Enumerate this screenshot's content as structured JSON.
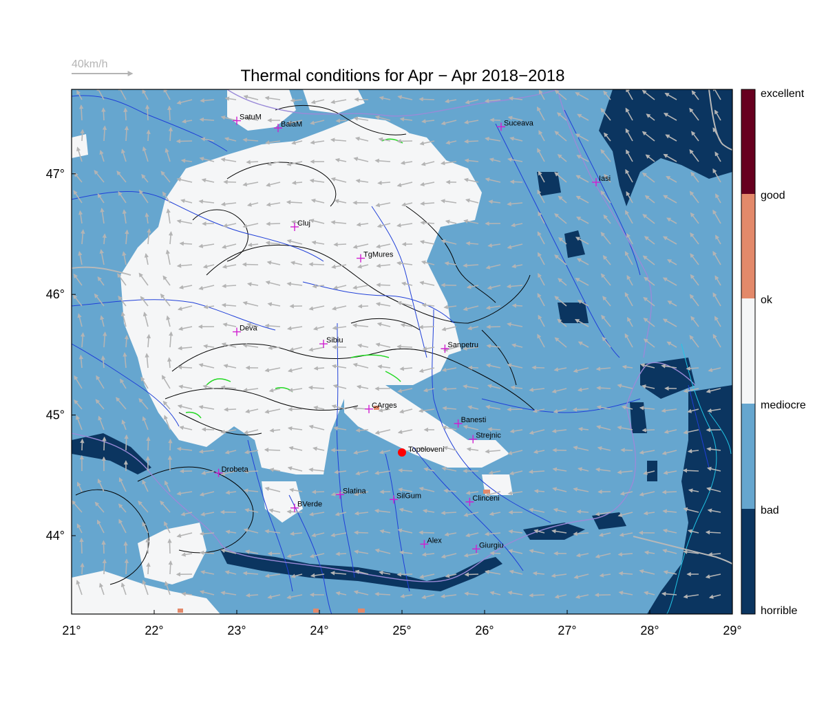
{
  "title": "Thermal conditions for Apr − Apr  2018−2018",
  "wind_scale": {
    "label": "40km/h"
  },
  "map": {
    "lon_range": [
      21,
      29
    ],
    "lat_range": [
      43.35,
      47.7
    ],
    "x_ticks": [
      "21°",
      "22°",
      "23°",
      "24°",
      "25°",
      "26°",
      "27°",
      "28°",
      "29°"
    ],
    "y_ticks": [
      "47°",
      "46°",
      "45°",
      "44°"
    ],
    "marked_location": {
      "name": "Topoloveni",
      "lon": 25.0,
      "lat": 44.69
    }
  },
  "colors": {
    "horrible": "#0b3560",
    "bad": "#66a6cf",
    "mediocre": "#f5f6f7",
    "ok": "#e3896a",
    "good": "#67001f",
    "wind_arrow": "#b4b4b4",
    "river": "#1f3fd8",
    "border": "#9a8ad8",
    "contour": "#000000",
    "city_marker": "#d01fd0",
    "location_marker": "#ff0000"
  },
  "legend": {
    "labels": [
      "excellent",
      "good",
      "ok",
      "mediocre",
      "bad",
      "horrible"
    ]
  },
  "cities": [
    {
      "name": "SatuM",
      "lon": 23.0,
      "lat": 47.44
    },
    {
      "name": "BaiaM",
      "lon": 23.5,
      "lat": 47.38
    },
    {
      "name": "Suceava",
      "lon": 26.2,
      "lat": 47.39
    },
    {
      "name": "Iasi",
      "lon": 27.35,
      "lat": 46.93
    },
    {
      "name": "Cluj",
      "lon": 23.7,
      "lat": 46.56
    },
    {
      "name": "TgMures",
      "lon": 24.5,
      "lat": 46.3
    },
    {
      "name": "Deva",
      "lon": 23.0,
      "lat": 45.69
    },
    {
      "name": "Sibiu",
      "lon": 24.05,
      "lat": 45.59
    },
    {
      "name": "Sanpetru",
      "lon": 25.52,
      "lat": 45.55
    },
    {
      "name": "CArges",
      "lon": 24.6,
      "lat": 45.05
    },
    {
      "name": "Banesti",
      "lon": 25.68,
      "lat": 44.93
    },
    {
      "name": "Strejnic",
      "lon": 25.86,
      "lat": 44.8
    },
    {
      "name": "Drobeta",
      "lon": 22.78,
      "lat": 44.52
    },
    {
      "name": "Slatina",
      "lon": 24.25,
      "lat": 44.34
    },
    {
      "name": "SilGum",
      "lon": 24.9,
      "lat": 44.3
    },
    {
      "name": "Clinceni",
      "lon": 25.82,
      "lat": 44.28
    },
    {
      "name": "BVerde",
      "lon": 23.7,
      "lat": 44.23
    },
    {
      "name": "Alex",
      "lon": 25.27,
      "lat": 43.93
    },
    {
      "name": "Giurgiu",
      "lon": 25.9,
      "lat": 43.89
    }
  ]
}
